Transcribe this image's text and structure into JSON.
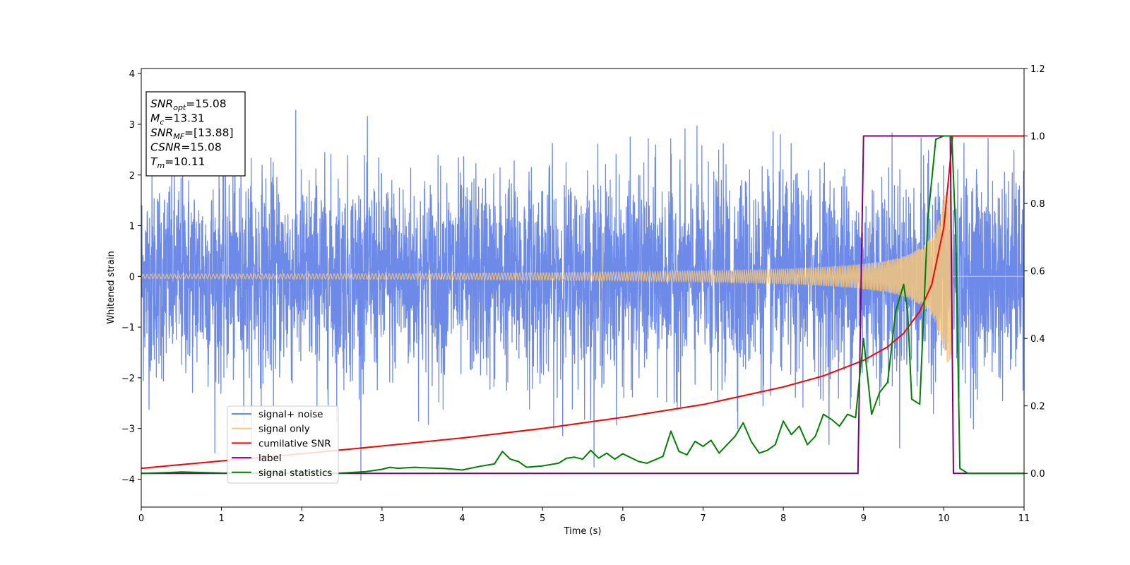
{
  "chart_data": {
    "type": "line",
    "xlabel": "Time (s)",
    "ylabel": "Whitened strain",
    "xlim": [
      0,
      11
    ],
    "ylim_left": [
      -4.55,
      4.1
    ],
    "ylim_right": [
      -0.1,
      1.2
    ],
    "x_ticks": [
      "0",
      "1",
      "2",
      "3",
      "4",
      "5",
      "6",
      "7",
      "8",
      "9",
      "10",
      "11"
    ],
    "y_ticks_left": [
      "−4",
      "−3",
      "−2",
      "−1",
      "0",
      "1",
      "2",
      "3",
      "4"
    ],
    "y_ticks_right": [
      "0.0",
      "0.2",
      "0.4",
      "0.6",
      "0.8",
      "1.0",
      "1.2"
    ],
    "legend_position": "lower-left",
    "legend": [
      "signal+ noise",
      "signal only",
      "cumilative SNR",
      "label",
      "signal statistics"
    ],
    "info_box": {
      "position": "upper-left",
      "lines": [
        {
          "main": "SNR",
          "sub": "opt",
          "rest": "=15.08"
        },
        {
          "main": "M",
          "sub": "c",
          "rest": "=13.31"
        },
        {
          "main": "SNR",
          "sub": "MF",
          "rest": "=[13.88]"
        },
        {
          "main": "CSNR",
          "sub": "",
          "rest": "=15.08"
        },
        {
          "main": "T",
          "sub": "m",
          "rest": "=10.11"
        }
      ]
    },
    "series": [
      {
        "name": "signal+ noise",
        "axis": "left",
        "color": "#6d8ae8",
        "kind": "noise",
        "approx_std": 1.0,
        "approx_range": [
          -4.15,
          3.7
        ],
        "x_range": [
          0,
          11
        ]
      },
      {
        "name": "signal only",
        "axis": "left",
        "color": "#f5c57a",
        "kind": "chirp",
        "merger_time": 10.11,
        "amplitude_at_start": 0.04,
        "amplitude_at_merger": 1.7,
        "x_range": [
          0,
          11
        ]
      },
      {
        "name": "cumilative SNR",
        "axis": "right",
        "color": "#ff0000",
        "x": [
          0,
          1,
          2,
          3,
          4,
          5,
          6,
          7,
          8,
          8.5,
          9,
          9.3,
          9.5,
          9.7,
          9.85,
          10.0,
          10.11,
          11
        ],
        "y": [
          0.015,
          0.037,
          0.058,
          0.081,
          0.105,
          0.133,
          0.166,
          0.204,
          0.256,
          0.289,
          0.335,
          0.375,
          0.415,
          0.48,
          0.56,
          0.73,
          1.0,
          1.0
        ]
      },
      {
        "name": "label",
        "axis": "right",
        "color": "#800080",
        "x": [
          0,
          8.93,
          9.0,
          10.08,
          10.12,
          11
        ],
        "y": [
          0,
          0,
          1,
          1,
          0,
          0
        ]
      },
      {
        "name": "signal statistics",
        "axis": "right",
        "color": "#008000",
        "x": [
          0,
          0.3,
          0.5,
          1,
          2,
          2.5,
          2.8,
          3.0,
          3.1,
          3.2,
          3.4,
          3.6,
          3.8,
          4.0,
          4.2,
          4.4,
          4.5,
          4.6,
          4.7,
          4.8,
          5.0,
          5.2,
          5.3,
          5.4,
          5.5,
          5.6,
          5.7,
          5.8,
          5.9,
          6.0,
          6.2,
          6.3,
          6.5,
          6.6,
          6.7,
          6.8,
          6.9,
          7.0,
          7.1,
          7.2,
          7.3,
          7.4,
          7.5,
          7.6,
          7.7,
          7.8,
          7.9,
          8.0,
          8.1,
          8.2,
          8.3,
          8.4,
          8.5,
          8.6,
          8.7,
          8.8,
          8.9,
          9.0,
          9.1,
          9.2,
          9.3,
          9.4,
          9.5,
          9.55,
          9.6,
          9.7,
          9.8,
          9.9,
          10.0,
          10.1,
          10.15,
          10.2,
          10.3,
          11
        ],
        "y": [
          0,
          0.002,
          0.004,
          0.001,
          0,
          0.001,
          0.005,
          0.012,
          0.018,
          0.015,
          0.018,
          0.016,
          0.014,
          0.01,
          0.02,
          0.028,
          0.065,
          0.042,
          0.035,
          0.018,
          0.022,
          0.03,
          0.045,
          0.048,
          0.042,
          0.068,
          0.045,
          0.06,
          0.042,
          0.058,
          0.035,
          0.03,
          0.05,
          0.125,
          0.065,
          0.055,
          0.095,
          0.08,
          0.098,
          0.06,
          0.085,
          0.11,
          0.15,
          0.095,
          0.06,
          0.068,
          0.085,
          0.155,
          0.115,
          0.14,
          0.085,
          0.11,
          0.175,
          0.16,
          0.14,
          0.175,
          0.165,
          0.4,
          0.175,
          0.24,
          0.27,
          0.48,
          0.56,
          0.48,
          0.22,
          0.205,
          0.75,
          0.99,
          1.0,
          1.0,
          0.7,
          0.015,
          0.0,
          0.0
        ]
      }
    ]
  }
}
